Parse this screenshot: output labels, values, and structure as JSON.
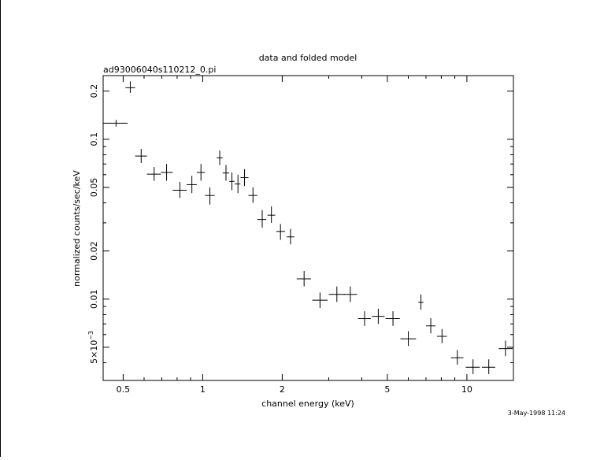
{
  "chart_data": {
    "type": "scatter",
    "title": "data and folded model",
    "subtitle": "ad93006040s110212_0.pi",
    "xlabel": "channel energy (keV)",
    "ylabel": "normalized counts/sec/keV",
    "x_scale": "log",
    "y_scale": "log",
    "xlim": [
      0.42,
      15.0
    ],
    "ylim": [
      0.0031,
      0.25
    ],
    "x_ticks": [
      {
        "value": 0.5,
        "label": "0.5"
      },
      {
        "value": 1,
        "label": "1"
      },
      {
        "value": 2,
        "label": "2"
      },
      {
        "value": 5,
        "label": "5"
      },
      {
        "value": 10,
        "label": "10"
      }
    ],
    "y_ticks": [
      {
        "value": 0.005,
        "label_base": "5×10",
        "label_exp": "−3"
      },
      {
        "value": 0.01,
        "label": "0.01"
      },
      {
        "value": 0.02,
        "label": "0.02"
      },
      {
        "value": 0.05,
        "label": "0.05"
      },
      {
        "value": 0.1,
        "label": "0.1"
      },
      {
        "value": 0.2,
        "label": "0.2"
      }
    ],
    "grid": false,
    "series": [
      {
        "points": [
          {
            "x": 0.47,
            "y": 0.126,
            "xerr": [
              0.42,
              0.52
            ],
            "yerr": [
              0.12,
              0.132
            ]
          },
          {
            "x": 0.532,
            "y": 0.21,
            "xerr": [
              0.51,
              0.555
            ],
            "yerr": [
              0.195,
              0.23
            ]
          },
          {
            "x": 0.585,
            "y": 0.0785,
            "xerr": [
              0.555,
              0.615
            ],
            "yerr": [
              0.071,
              0.087
            ]
          },
          {
            "x": 0.655,
            "y": 0.0605,
            "xerr": [
              0.615,
              0.695
            ],
            "yerr": [
              0.055,
              0.067
            ]
          },
          {
            "x": 0.73,
            "y": 0.062,
            "xerr": [
              0.695,
              0.77
            ],
            "yerr": [
              0.055,
              0.07
            ]
          },
          {
            "x": 0.82,
            "y": 0.048,
            "xerr": [
              0.77,
              0.87
            ],
            "yerr": [
              0.043,
              0.054
            ]
          },
          {
            "x": 0.91,
            "y": 0.052,
            "xerr": [
              0.87,
              0.95
            ],
            "yerr": [
              0.046,
              0.059
            ]
          },
          {
            "x": 0.985,
            "y": 0.062,
            "xerr": [
              0.95,
              1.02
            ],
            "yerr": [
              0.055,
              0.07
            ]
          },
          {
            "x": 1.065,
            "y": 0.0445,
            "xerr": [
              1.02,
              1.11
            ],
            "yerr": [
              0.039,
              0.05
            ]
          },
          {
            "x": 1.16,
            "y": 0.0765,
            "xerr": [
              1.13,
              1.19
            ],
            "yerr": [
              0.069,
              0.085
            ]
          },
          {
            "x": 1.225,
            "y": 0.0615,
            "xerr": [
              1.19,
              1.26
            ],
            "yerr": [
              0.055,
              0.069
            ]
          },
          {
            "x": 1.29,
            "y": 0.0545,
            "xerr": [
              1.26,
              1.32
            ],
            "yerr": [
              0.048,
              0.062
            ]
          },
          {
            "x": 1.36,
            "y": 0.0525,
            "xerr": [
              1.32,
              1.39
            ],
            "yerr": [
              0.046,
              0.06
            ]
          },
          {
            "x": 1.44,
            "y": 0.0575,
            "xerr": [
              1.39,
              1.49
            ],
            "yerr": [
              0.051,
              0.065
            ]
          },
          {
            "x": 1.55,
            "y": 0.0445,
            "xerr": [
              1.49,
              1.61
            ],
            "yerr": [
              0.04,
              0.05
            ]
          },
          {
            "x": 1.68,
            "y": 0.0315,
            "xerr": [
              1.61,
              1.74
            ],
            "yerr": [
              0.028,
              0.036
            ]
          },
          {
            "x": 1.82,
            "y": 0.0335,
            "xerr": [
              1.76,
              1.88
            ],
            "yerr": [
              0.03,
              0.038
            ]
          },
          {
            "x": 1.97,
            "y": 0.0265,
            "xerr": [
              1.9,
              2.05
            ],
            "yerr": [
              0.0235,
              0.0295
            ]
          },
          {
            "x": 2.15,
            "y": 0.0245,
            "xerr": [
              2.08,
              2.22
            ],
            "yerr": [
              0.022,
              0.0275
            ]
          },
          {
            "x": 2.42,
            "y": 0.0134,
            "xerr": [
              2.27,
              2.57
            ],
            "yerr": [
              0.012,
              0.015
            ]
          },
          {
            "x": 2.78,
            "y": 0.00985,
            "xerr": [
              2.6,
              2.97
            ],
            "yerr": [
              0.0088,
              0.011
            ]
          },
          {
            "x": 3.22,
            "y": 0.0107,
            "xerr": [
              3.0,
              3.45
            ],
            "yerr": [
              0.0096,
              0.012
            ]
          },
          {
            "x": 3.62,
            "y": 0.0107,
            "xerr": [
              3.42,
              3.84
            ],
            "yerr": [
              0.0096,
              0.012
            ]
          },
          {
            "x": 4.1,
            "y": 0.00755,
            "xerr": [
              3.87,
              4.33
            ],
            "yerr": [
              0.0068,
              0.0084
            ]
          },
          {
            "x": 4.62,
            "y": 0.0078,
            "xerr": [
              4.37,
              4.88
            ],
            "yerr": [
              0.007,
              0.0087
            ]
          },
          {
            "x": 5.25,
            "y": 0.00755,
            "xerr": [
              4.92,
              5.58
            ],
            "yerr": [
              0.0068,
              0.0084
            ]
          },
          {
            "x": 6.0,
            "y": 0.00565,
            "xerr": [
              5.6,
              6.42
            ],
            "yerr": [
              0.0051,
              0.0063
            ]
          },
          {
            "x": 6.7,
            "y": 0.00955,
            "xerr": [
              6.55,
              6.85
            ],
            "yerr": [
              0.0086,
              0.0107
            ]
          },
          {
            "x": 7.3,
            "y": 0.0068,
            "xerr": [
              7.0,
              7.6
            ],
            "yerr": [
              0.0061,
              0.0076
            ]
          },
          {
            "x": 8.05,
            "y": 0.00585,
            "xerr": [
              7.7,
              8.4
            ],
            "yerr": [
              0.0053,
              0.0065
            ]
          },
          {
            "x": 9.2,
            "y": 0.0043,
            "xerr": [
              8.7,
              9.7
            ],
            "yerr": [
              0.0039,
              0.0048
            ]
          },
          {
            "x": 10.55,
            "y": 0.00375,
            "xerr": [
              9.9,
              11.2
            ],
            "yerr": [
              0.0034,
              0.0042
            ]
          },
          {
            "x": 12.1,
            "y": 0.00375,
            "xerr": [
              11.4,
              12.8
            ],
            "yerr": [
              0.0034,
              0.0042
            ]
          },
          {
            "x": 14.0,
            "y": 0.0049,
            "xerr": [
              13.2,
              14.9
            ],
            "yerr": [
              0.0044,
              0.0055
            ]
          }
        ]
      }
    ]
  },
  "footer": {
    "timestamp": "3-May-1998 11:24"
  }
}
